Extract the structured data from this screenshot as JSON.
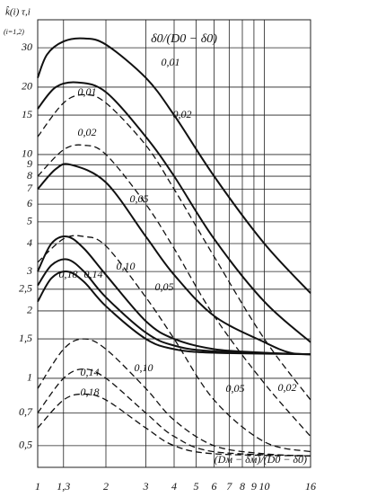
{
  "chart_data": {
    "type": "line",
    "title": "δ0/(D0 − δ0)",
    "y_label": "k̂(i) τ,i",
    "y_label_note": "(i=1,2)",
    "x_label": "(Dм − δм)/(D0 − δ0)",
    "log_x": true,
    "log_y": true,
    "grid": true,
    "legend": false,
    "xlim": [
      1,
      16
    ],
    "ylim": [
      0.4,
      40
    ],
    "xticks": [
      1,
      {
        "value": 1.3,
        "label": "1,3"
      },
      2,
      3,
      4,
      5,
      6,
      7,
      8,
      9,
      10,
      16
    ],
    "yticks": [
      {
        "value": 0.5,
        "label": "0,5"
      },
      {
        "value": 0.7,
        "label": "0,7"
      },
      1,
      {
        "value": 1.5,
        "label": "1,5"
      },
      2,
      {
        "value": 2.5,
        "label": "2,5"
      },
      3,
      4,
      5,
      6,
      7,
      8,
      9,
      10,
      15,
      20,
      30
    ],
    "series": [
      {
        "name": "0,01",
        "color": "#111",
        "dashed": false,
        "x": [
          1,
          1.1,
          1.3,
          1.6,
          2,
          3,
          4,
          6,
          10,
          16
        ],
        "values": [
          22,
          28,
          32,
          33,
          31,
          22,
          15,
          8,
          4,
          2.4
        ]
      },
      {
        "name": "0,02",
        "color": "#111",
        "dashed": false,
        "x": [
          1,
          1.2,
          1.5,
          2,
          3,
          4,
          6,
          10,
          16
        ],
        "values": [
          16,
          20,
          21,
          19,
          12,
          8,
          4.2,
          2.2,
          1.45
        ]
      },
      {
        "name": "0,05",
        "color": "#111",
        "dashed": false,
        "x": [
          1,
          1.2,
          1.4,
          2,
          3,
          4,
          6,
          10,
          13,
          16
        ],
        "values": [
          7,
          8.6,
          9,
          7.5,
          4.3,
          2.9,
          1.9,
          1.45,
          1.3,
          1.28
        ]
      },
      {
        "name": "0,10",
        "color": "#111",
        "dashed": false,
        "x": [
          1,
          1.15,
          1.35,
          1.6,
          2,
          3,
          4,
          6,
          10,
          16
        ],
        "values": [
          3,
          4,
          4.3,
          3.8,
          2.9,
          1.8,
          1.5,
          1.35,
          1.3,
          1.28
        ]
      },
      {
        "name": "0,14",
        "color": "#111",
        "dashed": false,
        "x": [
          1,
          1.15,
          1.35,
          1.6,
          2,
          3,
          4,
          6,
          16
        ],
        "values": [
          2.6,
          3.2,
          3.4,
          3,
          2.3,
          1.6,
          1.4,
          1.32,
          1.28
        ]
      },
      {
        "name": "0,18",
        "color": "#111",
        "dashed": false,
        "x": [
          1,
          1.15,
          1.35,
          1.6,
          2,
          3,
          4,
          6,
          16
        ],
        "values": [
          2.2,
          2.8,
          3,
          2.7,
          2.1,
          1.5,
          1.35,
          1.3,
          1.28
        ]
      },
      {
        "name": "0,01",
        "color": "#111",
        "dashed": true,
        "x": [
          1,
          1.3,
          1.6,
          2,
          3,
          4,
          6,
          10,
          16
        ],
        "values": [
          12,
          17,
          18.5,
          17,
          11,
          7,
          3.5,
          1.5,
          0.8
        ]
      },
      {
        "name": "0,02",
        "color": "#111",
        "dashed": true,
        "x": [
          1,
          1.3,
          1.6,
          2,
          3,
          4,
          6,
          10,
          16
        ],
        "values": [
          8,
          10.5,
          11,
          10,
          6,
          3.8,
          1.9,
          0.95,
          0.55
        ]
      },
      {
        "name": "0,05",
        "color": "#111",
        "dashed": true,
        "x": [
          1,
          1.3,
          1.6,
          2,
          3,
          4,
          6,
          10,
          16
        ],
        "values": [
          3.3,
          4.2,
          4.3,
          3.9,
          2.3,
          1.5,
          0.8,
          0.52,
          0.47
        ]
      },
      {
        "name": "0,10",
        "color": "#111",
        "dashed": true,
        "x": [
          1,
          1.3,
          1.6,
          2,
          3,
          4,
          6,
          10,
          16
        ],
        "values": [
          0.9,
          1.35,
          1.5,
          1.35,
          0.9,
          0.65,
          0.5,
          0.46,
          0.45
        ]
      },
      {
        "name": "0,14",
        "color": "#111",
        "dashed": true,
        "x": [
          1,
          1.3,
          1.6,
          2,
          3,
          4,
          6,
          16
        ],
        "values": [
          0.7,
          1,
          1.1,
          1,
          0.7,
          0.55,
          0.47,
          0.45
        ]
      },
      {
        "name": "0,18",
        "color": "#111",
        "dashed": true,
        "x": [
          1,
          1.3,
          1.6,
          2,
          3,
          4,
          6,
          16
        ],
        "values": [
          0.6,
          0.8,
          0.85,
          0.8,
          0.6,
          0.5,
          0.46,
          0.45
        ]
      }
    ]
  }
}
